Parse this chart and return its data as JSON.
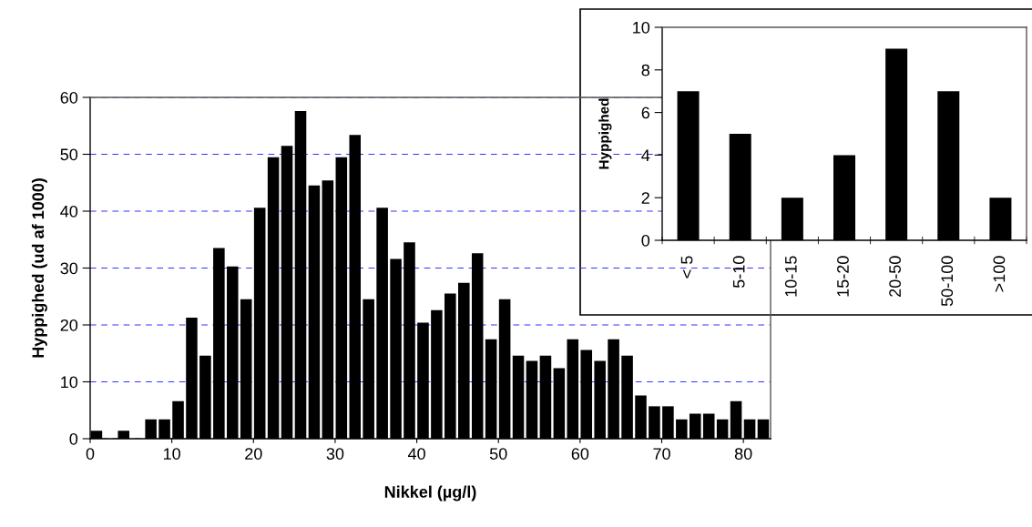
{
  "chart_data": [
    {
      "type": "histogram",
      "xlabel": "Nikkel (µg/l)",
      "ylabel": "Hyppighed (ud af 1000)",
      "color": "#000000",
      "bins": [
        0,
        1.67,
        3.33,
        5,
        6.67,
        8.33,
        10,
        11.67,
        13.33,
        15,
        16.67,
        18.33,
        20,
        21.67,
        23.33,
        25,
        26.67,
        28.33,
        30,
        31.67,
        33.33,
        35,
        36.67,
        38.33,
        40,
        41.67,
        43.33,
        45,
        46.67,
        48.33,
        50,
        51.67,
        53.33,
        55,
        56.67,
        58.33,
        60,
        61.67,
        63.33,
        65,
        66.67,
        68.33,
        70,
        71.67,
        73.33,
        75,
        76.67,
        78.33,
        80,
        81.67,
        83.33
      ],
      "values": [
        1.4,
        0,
        1.4,
        0,
        3.4,
        3.4,
        6.6,
        21.3,
        14.6,
        33.5,
        30.3,
        24.5,
        40.6,
        49.5,
        51.5,
        57.6,
        44.5,
        45.4,
        49.5,
        53.4,
        24.5,
        40.6,
        31.6,
        34.5,
        20.4,
        22.6,
        25.5,
        27.4,
        32.6,
        17.5,
        24.5,
        14.6,
        13.7,
        14.6,
        12.4,
        17.5,
        15.6,
        13.7,
        17.5,
        14.6,
        7.6,
        5.7,
        5.7,
        3.4,
        4.4,
        4.4,
        3.4,
        6.6,
        3.4,
        3.4
      ],
      "xlim": [
        0,
        83.33
      ],
      "xticks": [
        0,
        10,
        20,
        30,
        40,
        50,
        60,
        70,
        80
      ],
      "ylim": [
        0,
        60
      ],
      "yticks": [
        0,
        10,
        20,
        30,
        40,
        50,
        60
      ],
      "grid": "y"
    },
    {
      "type": "bar",
      "ylabel": "Hyppighed",
      "color": "#000000",
      "categories": [
        "< 5",
        "5-10",
        "10-15",
        "15-20",
        "20-50",
        "50-100",
        ">100"
      ],
      "values": [
        7,
        5,
        2,
        4,
        9,
        7,
        2
      ],
      "ylim": [
        0,
        10
      ],
      "yticks": [
        0,
        2,
        4,
        6,
        8,
        10
      ]
    }
  ]
}
